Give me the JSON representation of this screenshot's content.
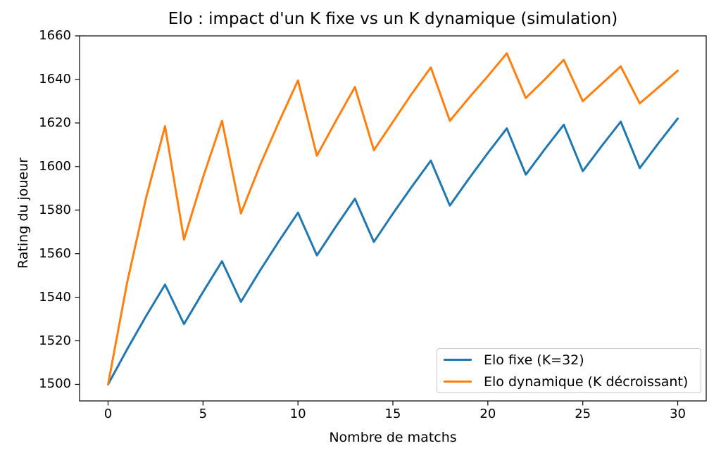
{
  "chart_data": {
    "type": "line",
    "title": "Elo : impact d'un K fixe vs un K dynamique (simulation)",
    "xlabel": "Nombre de matchs",
    "ylabel": "Rating du joueur",
    "x": [
      0,
      1,
      2,
      3,
      4,
      5,
      6,
      7,
      8,
      9,
      10,
      11,
      12,
      13,
      14,
      15,
      16,
      17,
      18,
      19,
      20,
      21,
      22,
      23,
      24,
      25,
      26,
      27,
      28,
      29,
      30
    ],
    "series": [
      {
        "name": "Elo fixe (K=32)",
        "color": "#1f77b4",
        "values": [
          1500.0,
          1516.0,
          1531.3,
          1545.8,
          1527.7,
          1542.4,
          1556.5,
          1537.9,
          1552.2,
          1565.8,
          1578.8,
          1559.2,
          1572.5,
          1585.2,
          1565.4,
          1578.4,
          1590.8,
          1602.7,
          1582.1,
          1594.4,
          1606.2,
          1617.5,
          1596.3,
          1608.0,
          1619.2,
          1597.9,
          1609.5,
          1620.6,
          1599.3,
          1610.9,
          1622.0
        ]
      },
      {
        "name": "Elo dynamique (K décroissant)",
        "color": "#ff7f0e",
        "values": [
          1500.0,
          1546.5,
          1585.5,
          1618.5,
          1566.5,
          1595.0,
          1621.0,
          1578.5,
          1600.5,
          1620.5,
          1639.5,
          1605.0,
          1621.0,
          1636.5,
          1607.5,
          1620.5,
          1633.5,
          1645.5,
          1621.0,
          1631.5,
          1641.5,
          1652.0,
          1631.5,
          1640.0,
          1649.0,
          1630.0,
          1638.0,
          1646.0,
          1629.0,
          1636.5,
          1644.0
        ]
      }
    ],
    "xlim": [
      -1.5,
      31.5
    ],
    "ylim": [
      1492.4,
      1660
    ],
    "x_ticks": [
      0,
      5,
      10,
      15,
      20,
      25,
      30
    ],
    "y_ticks": [
      1500,
      1520,
      1540,
      1560,
      1580,
      1600,
      1620,
      1640,
      1660
    ],
    "grid": false,
    "legend_position": "lower right",
    "line_width": 3,
    "axis_color": "#000000"
  },
  "legend": {
    "items": [
      {
        "label": "Elo fixe (K=32)",
        "color": "#1f77b4"
      },
      {
        "label": "Elo dynamique (K décroissant)",
        "color": "#ff7f0e"
      }
    ]
  }
}
